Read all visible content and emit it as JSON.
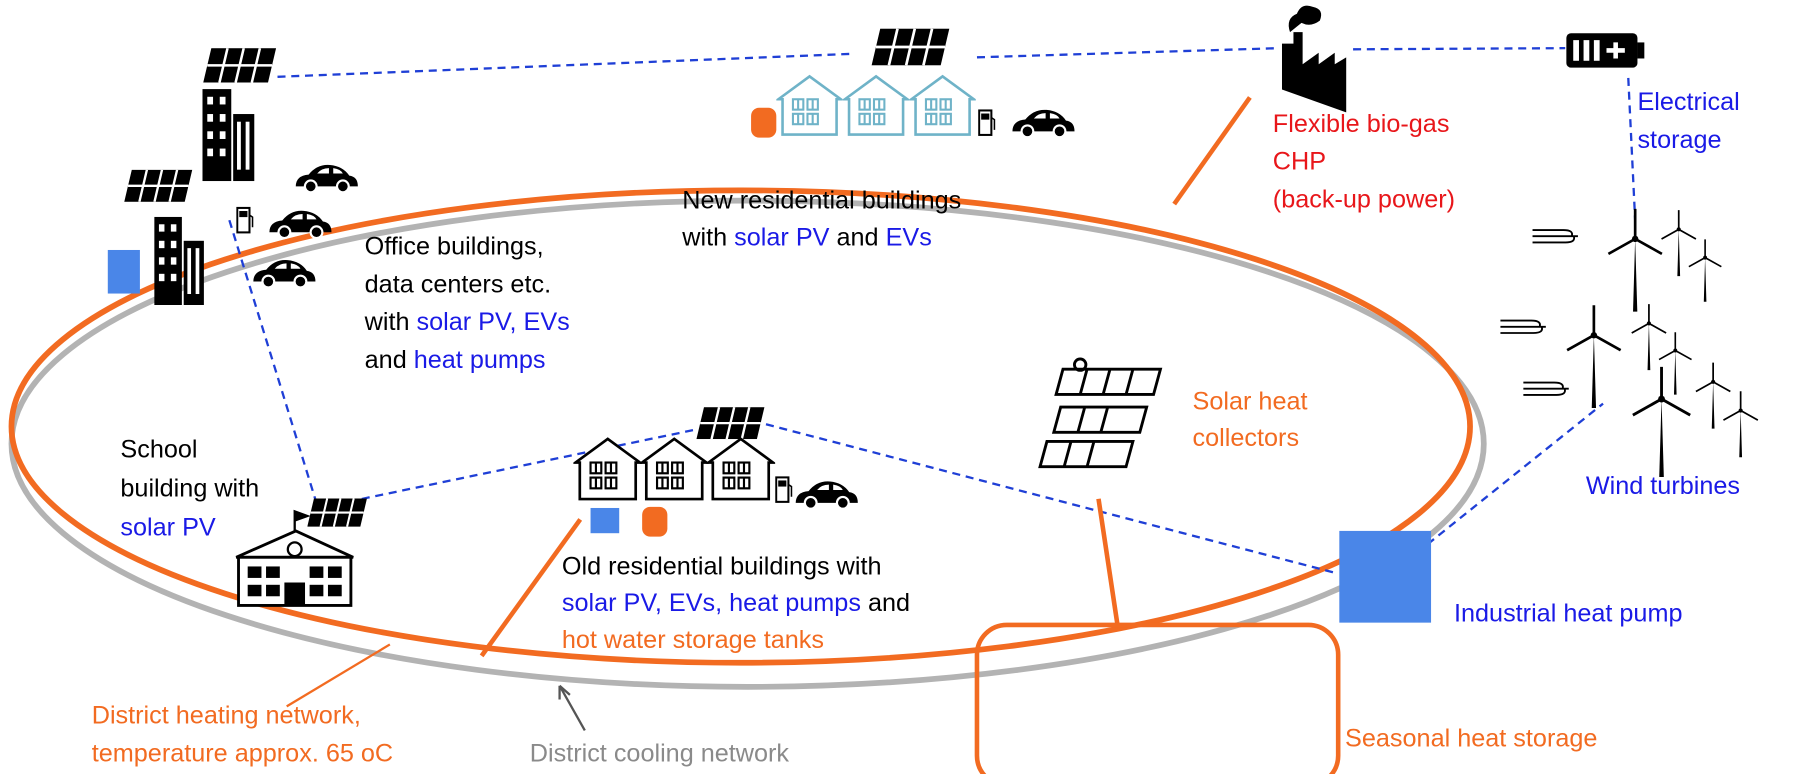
{
  "labels": {
    "new_residential": [
      [
        "New residential buildings"
      ],
      [
        "with",
        "solar PV",
        "and",
        "EVs"
      ]
    ],
    "office": [
      [
        "Office buildings,"
      ],
      [
        "data centers etc."
      ],
      [
        "with",
        "solar PV, EVs"
      ],
      [
        "and",
        "heat pumps"
      ]
    ],
    "school": [
      [
        "School"
      ],
      [
        "building with"
      ],
      [
        "solar PV"
      ]
    ],
    "old_residential": [
      [
        "Old residential buildings with"
      ],
      [
        "solar PV, EVs, heat pumps",
        "and"
      ],
      [
        "hot water storage tanks"
      ]
    ],
    "chp": [
      [
        "Flexible bio-gas"
      ],
      [
        "CHP"
      ],
      [
        "(back-up power)"
      ]
    ],
    "electrical_storage": [
      [
        "Electrical"
      ],
      [
        "storage"
      ]
    ],
    "wind": [
      [
        "Wind turbines"
      ]
    ],
    "solar_heat": [
      [
        "Solar heat"
      ],
      [
        "collectors"
      ]
    ],
    "industrial_heat_pump": [
      [
        "Industrial heat pump"
      ]
    ],
    "seasonal_storage": [
      [
        "Seasonal heat storage"
      ]
    ],
    "district_heating": [
      [
        "District heating network,"
      ],
      [
        "temperature approx. 65 oC"
      ]
    ],
    "district_cooling": [
      [
        "District cooling network"
      ]
    ]
  }
}
